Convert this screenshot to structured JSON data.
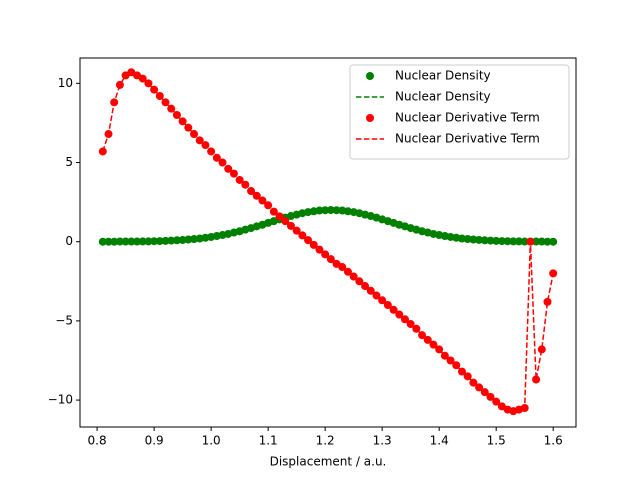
{
  "chart_data": {
    "type": "line",
    "xlabel": "Displacement / a.u.",
    "x": [
      0.81,
      0.82,
      0.83,
      0.84,
      0.85,
      0.86,
      0.87,
      0.88,
      0.89,
      0.9,
      0.91,
      0.92,
      0.93,
      0.94,
      0.95,
      0.96,
      0.97,
      0.98,
      0.99,
      1.0,
      1.01,
      1.02,
      1.03,
      1.04,
      1.05,
      1.06,
      1.07,
      1.08,
      1.09,
      1.1,
      1.11,
      1.12,
      1.13,
      1.14,
      1.15,
      1.16,
      1.17,
      1.18,
      1.19,
      1.2,
      1.21,
      1.22,
      1.23,
      1.24,
      1.25,
      1.26,
      1.27,
      1.28,
      1.29,
      1.3,
      1.31,
      1.32,
      1.33,
      1.34,
      1.35,
      1.36,
      1.37,
      1.38,
      1.39,
      1.4,
      1.41,
      1.42,
      1.43,
      1.44,
      1.45,
      1.46,
      1.47,
      1.48,
      1.49,
      1.5,
      1.51,
      1.52,
      1.53,
      1.54,
      1.55,
      1.56,
      1.57,
      1.58,
      1.59,
      1.6
    ],
    "series": [
      {
        "marker_name": "Nuclear Density",
        "line_name": "Nuclear Density",
        "color": "green",
        "values": [
          0.0,
          0.0,
          0.0,
          0.01,
          0.01,
          0.01,
          0.01,
          0.02,
          0.02,
          0.03,
          0.04,
          0.05,
          0.07,
          0.09,
          0.11,
          0.14,
          0.17,
          0.2,
          0.25,
          0.3,
          0.36,
          0.42,
          0.49,
          0.58,
          0.66,
          0.76,
          0.86,
          0.97,
          1.07,
          1.19,
          1.3,
          1.41,
          1.52,
          1.62,
          1.71,
          1.8,
          1.87,
          1.92,
          1.97,
          1.99,
          2.0,
          1.99,
          1.97,
          1.92,
          1.87,
          1.8,
          1.71,
          1.62,
          1.52,
          1.41,
          1.3,
          1.19,
          1.07,
          0.97,
          0.86,
          0.76,
          0.66,
          0.58,
          0.49,
          0.42,
          0.36,
          0.3,
          0.25,
          0.2,
          0.17,
          0.14,
          0.11,
          0.09,
          0.07,
          0.05,
          0.04,
          0.03,
          0.02,
          0.02,
          0.01,
          0.01,
          0.01,
          0.01,
          0.0,
          0.0
        ]
      },
      {
        "marker_name": "Nuclear Derivative Term",
        "line_name": "Nuclear Derivative Term",
        "color": "red",
        "values": [
          5.7,
          6.8,
          8.8,
          9.9,
          10.5,
          10.7,
          10.5,
          10.3,
          10.0,
          9.6,
          9.2,
          8.8,
          8.4,
          8.0,
          7.6,
          7.2,
          6.8,
          6.4,
          6.1,
          5.7,
          5.3,
          5.0,
          4.6,
          4.3,
          3.9,
          3.6,
          3.2,
          2.9,
          2.6,
          2.3,
          1.9,
          1.6,
          1.3,
          1.0,
          0.7,
          0.4,
          0.1,
          -0.2,
          -0.5,
          -0.8,
          -1.1,
          -1.4,
          -1.6,
          -1.9,
          -2.2,
          -2.5,
          -2.8,
          -3.1,
          -3.4,
          -3.7,
          -4.0,
          -4.3,
          -4.6,
          -4.9,
          -5.2,
          -5.5,
          -5.9,
          -6.2,
          -6.5,
          -6.8,
          -7.2,
          -7.5,
          -7.8,
          -8.2,
          -8.5,
          -8.9,
          -9.2,
          -9.5,
          -9.8,
          -10.1,
          -10.4,
          -10.6,
          -10.7,
          -10.6,
          -10.5,
          0.0,
          -8.7,
          -6.8,
          -3.8,
          -2.0
        ]
      }
    ],
    "xlim": [
      0.77,
      1.64
    ],
    "ylim": [
      -11.7,
      11.6
    ],
    "xticks": [
      0.8,
      0.9,
      {
        "value": 1,
        "label": "1.0"
      },
      1.1,
      1.2,
      1.3,
      1.4,
      1.5,
      1.6
    ],
    "yticks": [
      {
        "value": -10,
        "label": "−10"
      },
      {
        "value": -5,
        "label": "−5"
      },
      0,
      5,
      10
    ],
    "grid": false,
    "legend": "upper right"
  }
}
